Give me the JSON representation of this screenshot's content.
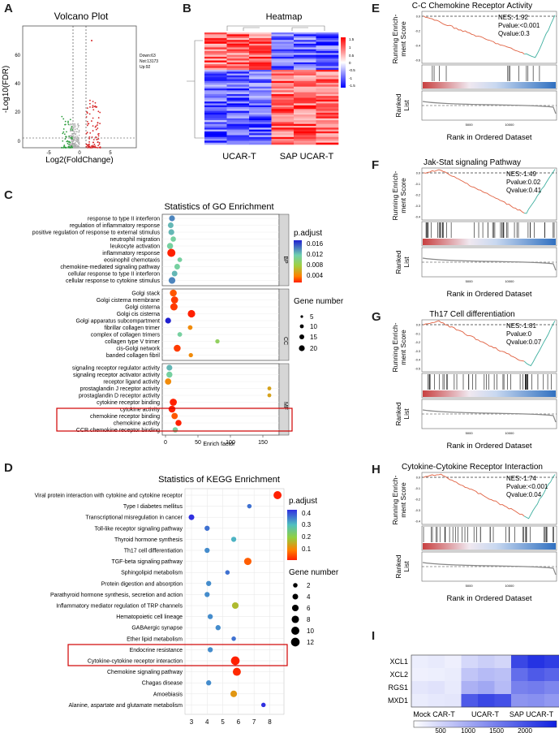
{
  "panel_letters": {
    "A": "A",
    "B": "B",
    "C": "C",
    "D": "D",
    "E": "E",
    "F": "F",
    "G": "G",
    "H": "H",
    "I": "I"
  },
  "volcano": {
    "title": "Volcano Plot",
    "ylabel": "-Log10(FDR)",
    "xlabel": "Log2(FoldChange)",
    "yticks": [
      "0",
      "20",
      "40",
      "60"
    ],
    "xticks": [
      "-5",
      "0",
      "5"
    ],
    "legend": [
      "Down:63",
      "Not:13173",
      "Up:92"
    ],
    "colors": {
      "down": "#2e9e3e",
      "not": "#b0b0b0",
      "up": "#d62728"
    }
  },
  "heatmap": {
    "title": "Heatmap",
    "group1": "UCAR-T",
    "group2": "SAP UCAR-T",
    "scale_ticks": [
      "1.5",
      "1",
      "0.5",
      "0",
      "-0.5",
      "-1",
      "-1.5"
    ]
  },
  "go": {
    "title": "Statistics of GO Enrichment",
    "xlabel": "Enrich factor",
    "xticks": [
      "0",
      "50",
      "100",
      "150"
    ],
    "categories": [
      "BP",
      "CC",
      "MF"
    ],
    "terms_bp": [
      "response to type II interferon",
      "regulation of inflammatory response",
      "positive regulation of response to external stimulus",
      "neutrophil migration",
      "leukocyte activation",
      "inflammatory response",
      "eosinophil chemotaxis",
      "chemokine-mediated signaling pathway",
      "cellular response to type II interferon",
      "cellular response to cytokine stimulus"
    ],
    "terms_cc": [
      "Golgi stack",
      "Golgi cisterna membrane",
      "Golgi cisterna",
      "Golgi cis cisterna",
      "Golgi apparatus subcompartment",
      "fibrillar collagen trimer",
      "complex of collagen trimers",
      "collagen type V trimer",
      "cis-Golgi network",
      "banded collagen fibril"
    ],
    "terms_mf": [
      "signaling receptor regulator activity",
      "signaling receptor activator activity",
      "receptor ligand activity",
      "prostaglandin J receptor activity",
      "prostaglandin D receptor activity",
      "cytokine receptor binding",
      "cytokine activity",
      "chemokine receptor binding",
      "chemokine activity",
      "CCR chemokine receptor binding"
    ],
    "padj_title": "p.adjust",
    "padj_ticks": [
      "0.016",
      "0.012",
      "0.008",
      "0.004"
    ],
    "gene_title": "Gene number",
    "gene_ticks": [
      "5",
      "10",
      "15",
      "20"
    ],
    "chart_data": {
      "type": "scatter",
      "x_enrich": [
        10,
        8,
        9,
        12,
        7,
        9,
        22,
        18,
        14,
        10,
        12,
        14,
        13,
        40,
        4,
        38,
        22,
        80,
        18,
        39,
        6,
        6,
        4,
        160,
        160,
        12,
        10,
        14,
        20,
        15
      ],
      "gene_number": [
        8,
        7,
        8,
        6,
        9,
        20,
        4,
        7,
        7,
        12,
        13,
        14,
        15,
        16,
        8,
        4,
        4,
        3,
        13,
        3,
        8,
        9,
        10,
        2,
        2,
        14,
        13,
        10,
        9,
        6
      ],
      "p_adjust": [
        0.014,
        0.013,
        0.013,
        0.012,
        0.012,
        0.002,
        0.012,
        0.012,
        0.013,
        0.014,
        0.004,
        0.003,
        0.003,
        0.002,
        0.016,
        0.006,
        0.012,
        0.01,
        0.003,
        0.006,
        0.013,
        0.012,
        0.006,
        0.007,
        0.007,
        0.002,
        0.002,
        0.004,
        0.002,
        0.012
      ]
    }
  },
  "kegg": {
    "title": "Statistics of KEGG Enrichment",
    "terms": [
      "Viral protein interaction with cytokine and cytokine receptor",
      "Type I diabetes mellitus",
      "Transcriptional misregulation in cancer",
      "Toll-like receptor signaling pathway",
      "Thyroid hormone synthesis",
      "Th17 cell differentiation",
      "TGF-beta signaling pathway",
      "Sphingolipid metabolism",
      "Protein digestion and absorption",
      "Parathyroid hormone synthesis, secretion and action",
      "Inflammatory mediator regulation of TRP channels",
      "Hematopoietic cell lineage",
      "GABAergic synapse",
      "Ether lipid metabolism",
      "Endocrine resistance",
      "Cytokine-cytokine receptor interaction",
      "Chemokine signaling pathway",
      "Chagas disease",
      "Amoebiasis",
      "Alanine, aspartate and glutamate metabolism"
    ],
    "xticks": [
      "3",
      "4",
      "5",
      "6",
      "7",
      "8"
    ],
    "padj_title": "p.adjust",
    "padj_ticks": [
      "0.4",
      "0.3",
      "0.2",
      "0.1"
    ],
    "gene_title": "Gene number",
    "gene_ticks": [
      "2",
      "4",
      "6",
      "8",
      "10",
      "12"
    ],
    "chart_data": {
      "type": "scatter",
      "x": [
        8.5,
        6.7,
        3.0,
        4.0,
        5.7,
        4.0,
        6.6,
        5.3,
        4.1,
        4.0,
        5.8,
        4.2,
        4.7,
        5.7,
        4.2,
        5.8,
        5.9,
        4.1,
        5.7,
        7.6
      ],
      "gene_number": [
        10,
        2,
        4,
        3,
        3,
        3,
        8,
        2,
        3,
        3,
        6,
        3,
        3,
        2,
        3,
        12,
        10,
        3,
        6,
        2
      ],
      "p_adjust": [
        0.01,
        0.4,
        0.45,
        0.4,
        0.35,
        0.38,
        0.08,
        0.4,
        0.38,
        0.38,
        0.2,
        0.38,
        0.38,
        0.4,
        0.38,
        0.01,
        0.02,
        0.38,
        0.15,
        0.45
      ]
    }
  },
  "gsea": [
    {
      "letter": "E",
      "title": "C-C Chemokine Receptor Activity",
      "nes": "NES:-1.92",
      "pval": "Pvalue:<0.001",
      "qval": "Qvalue:0.3",
      "ylabel": "Running Enrich-\nment Score",
      "ranked": "Ranked List",
      "xlabel": "Rank in Ordered Dataset",
      "ticks": [
        "5000",
        "10000"
      ],
      "es_ticks": [
        "0.0",
        "-0.2",
        "-0.4",
        "-0.6"
      ]
    },
    {
      "letter": "F",
      "title": "Jak-Stat signaling Pathway",
      "nes": "NES:-1.49",
      "pval": "Pvalue:0.02",
      "qval": "Qvalue:0.41",
      "ylabel": "Running Enrich-\nment Score",
      "ranked": "Ranked List",
      "xlabel": "Rank in Ordered Dataset",
      "ticks": [
        "5000",
        "10000"
      ],
      "es_ticks": [
        "0.0",
        "-0.1",
        "-0.2",
        "-0.3",
        "-0.4"
      ]
    },
    {
      "letter": "G",
      "title": "Th17 Cell differentiation",
      "nes": "NES:-1.81",
      "pval": "Pvalue:0",
      "qval": "Qvalue:0.07",
      "ylabel": "Running Enrich-\nment Score",
      "ranked": "Ranked List",
      "xlabel": "Rank in Ordered Dataset",
      "ticks": [
        "5000",
        "10000"
      ],
      "es_ticks": [
        "0.0",
        "-0.1",
        "-0.2",
        "-0.3",
        "-0.4",
        "-0.5"
      ]
    },
    {
      "letter": "H",
      "title": "Cytokine-Cytokine Receptor Interaction",
      "nes": "NES:-1.74",
      "pval": "Pvalue:<0.001",
      "qval": "Qvalue:0.04",
      "ylabel": "Running Enrich-\nment Score",
      "ranked": "Ranked List",
      "xlabel": "Rank in Ordered Dataset",
      "ticks": [
        "5000",
        "10000"
      ],
      "es_ticks": [
        "0.0",
        "-0.1",
        "-0.2",
        "-0.3",
        "-0.4"
      ]
    }
  ],
  "heat_i": {
    "rows": [
      "XCL1",
      "XCL2",
      "RGS1",
      "MXD1"
    ],
    "cols": [
      "Mock CAR-T",
      "UCAR-T",
      "SAP UCAR-T"
    ],
    "scale_ticks": [
      "500",
      "1000",
      "1500",
      "2000"
    ],
    "chart_data": {
      "type": "heatmap",
      "values": [
        [
          180,
          220,
          160,
          400,
          500,
          420,
          1900,
          2100,
          2000
        ],
        [
          150,
          170,
          200,
          600,
          700,
          650,
          1500,
          1700,
          1600
        ],
        [
          260,
          300,
          220,
          800,
          900,
          700,
          1300,
          1350,
          1250
        ],
        [
          200,
          240,
          260,
          1700,
          1900,
          1800,
          1100,
          1150,
          1050
        ]
      ],
      "range": [
        0,
        2300
      ]
    }
  }
}
